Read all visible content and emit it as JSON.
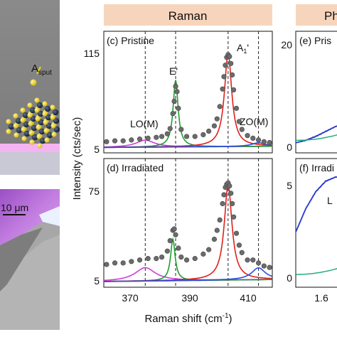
{
  "header_raman": "Raman",
  "header_right": "Ph",
  "panel_a": {
    "label_main": "A",
    "label_sub": "sput"
  },
  "panel_b": {
    "scalebar": "10 μm"
  },
  "panel_c": {
    "label": "(c) Pristine",
    "peak_e": "E'",
    "peak_a_main": "A",
    "peak_a_sub": "1",
    "peak_a_prime": "'",
    "peak_lo": "LO(M)",
    "peak_zo": "ZO(M)"
  },
  "panel_d": {
    "label": "(d) Irradiated"
  },
  "panel_e": {
    "label": "(e) Pris"
  },
  "panel_f": {
    "label": "(f) Irradi",
    "peak_l": "L"
  },
  "raman_axes": {
    "ylabel": "Intensity (cts/sec)",
    "xlabel_main": "Raman shift (cm",
    "xlabel_sup": "-1",
    "xlabel_end": ")",
    "xticks": [
      "370",
      "390",
      "410"
    ],
    "c_yticks": [
      "115",
      "5"
    ],
    "d_yticks": [
      "75",
      "5"
    ]
  },
  "pl_axes": {
    "e_yticks": [
      "20",
      "0"
    ],
    "f_yticks": [
      "5",
      "0"
    ],
    "xticks": [
      "1.6"
    ]
  },
  "colors": {
    "header_bg": "#f7d5bc",
    "data_points": "#6b6b6b",
    "fit_total": "#1f3bd6",
    "e_peak": "#1f9e2e",
    "a_peak": "#e0201c",
    "lo_peak": "#d23ad8",
    "zo_peak": "#2a4ee0",
    "baseline": "#6a2fb0",
    "substrate": "#f2a6ee",
    "pl_fit": "#2a3bd6",
    "pl_green": "#1fae7a"
  },
  "chart_data": [
    {
      "type": "scatter",
      "title": "(c) Pristine",
      "xlabel": "Raman shift (cm-1)",
      "ylabel": "Intensity (cts/sec)",
      "xlim": [
        360,
        421
      ],
      "ylim": [
        5,
        115
      ],
      "reference_lines_x": [
        375,
        386,
        405,
        416
      ],
      "peaks": [
        {
          "name": "LO(M)",
          "center": 375,
          "height": 8,
          "width": 8.0
        },
        {
          "name": "E'",
          "center": 386,
          "height": 76,
          "width": 2.2
        },
        {
          "name": "A1'",
          "center": 405,
          "height": 106,
          "width": 3.2
        },
        {
          "name": "ZO(M)",
          "center": 416,
          "height": 4,
          "width": 6.0
        }
      ],
      "series": [
        {
          "name": "data",
          "x": [
            361,
            364,
            367,
            370,
            373,
            376,
            379,
            381,
            383,
            384,
            385,
            385.5,
            386,
            386.5,
            387,
            388,
            390,
            393,
            396,
            398,
            400,
            401,
            402,
            403,
            403.5,
            404,
            404.5,
            405,
            405.5,
            406,
            406.5,
            407,
            408,
            409,
            410,
            412,
            414,
            416,
            418,
            420
          ],
          "y": [
            12,
            13,
            13,
            14,
            15,
            16,
            17,
            18,
            21,
            27,
            44,
            58,
            75,
            69,
            50,
            26,
            18,
            18,
            20,
            24,
            30,
            38,
            52,
            72,
            86,
            99,
            108,
            111,
            109,
            101,
            88,
            71,
            50,
            35,
            26,
            19,
            16,
            14,
            12,
            11
          ]
        }
      ]
    },
    {
      "type": "scatter",
      "title": "(d) Irradiated",
      "xlabel": "Raman shift (cm-1)",
      "ylabel": "Intensity (cts/sec)",
      "xlim": [
        360,
        421
      ],
      "ylim": [
        5,
        75
      ],
      "reference_lines_x": [
        375,
        386,
        405,
        416
      ],
      "peaks": [
        {
          "name": "LO(M)",
          "center": 375,
          "height": 9,
          "width": 9.0
        },
        {
          "name": "E'",
          "center": 385,
          "height": 28,
          "width": 2.0
        },
        {
          "name": "A1'",
          "center": 405,
          "height": 64,
          "width": 3.4
        },
        {
          "name": "ZO(M)",
          "center": 416,
          "height": 8,
          "width": 6.0
        }
      ],
      "series": [
        {
          "name": "data",
          "x": [
            361,
            364,
            367,
            370,
            373,
            376,
            379,
            381,
            383,
            384,
            385,
            385.5,
            386,
            387,
            388,
            390,
            393,
            396,
            398,
            400,
            401,
            402,
            403,
            403.5,
            404,
            404.5,
            405,
            405.5,
            406,
            406.5,
            407,
            408,
            409,
            410,
            412,
            414,
            416,
            418,
            420
          ],
          "y": [
            17,
            18,
            18,
            19,
            20,
            21,
            21,
            22,
            26,
            33,
            40,
            41,
            37,
            28,
            22,
            20,
            21,
            24,
            27,
            34,
            40,
            47,
            58,
            64,
            69,
            71,
            72,
            70,
            65,
            58,
            49,
            38,
            30,
            25,
            20,
            20,
            18,
            16,
            15
          ]
        }
      ]
    },
    {
      "type": "line",
      "title": "(e) Pris",
      "xlabel": "",
      "ylabel": "",
      "ylim": [
        0,
        20
      ],
      "xticks": [],
      "series": [
        {
          "name": "data",
          "x": [
            0,
            0.2,
            0.4,
            0.6,
            0.8,
            1.0
          ],
          "y": [
            0.3,
            0.8,
            1.6,
            2.6,
            3.6,
            4.4
          ]
        }
      ]
    },
    {
      "type": "line",
      "title": "(f) Irradi",
      "xlabel": "",
      "ylabel": "",
      "ylim": [
        0,
        5
      ],
      "xticks": [
        1.6
      ],
      "series": [
        {
          "name": "data",
          "x": [
            0,
            0.2,
            0.4,
            0.6,
            0.8,
            1.0
          ],
          "y": [
            2.2,
            3.3,
            4.1,
            4.6,
            4.8,
            4.8
          ]
        }
      ]
    }
  ]
}
